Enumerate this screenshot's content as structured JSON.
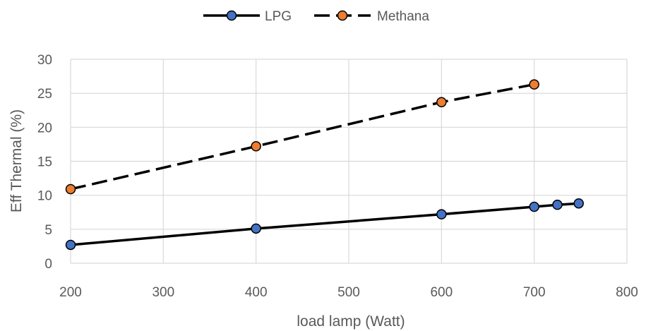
{
  "chart_data": {
    "type": "line",
    "xlabel": "load lamp (Watt)",
    "ylabel": "Eff Thermal (%)",
    "xlim": [
      200,
      800
    ],
    "ylim": [
      0,
      30
    ],
    "x_ticks": [
      200,
      300,
      400,
      500,
      600,
      700,
      800
    ],
    "y_ticks": [
      0,
      5,
      10,
      15,
      20,
      25,
      30
    ],
    "grid": true,
    "legend_position": "top",
    "series": [
      {
        "name": "LPG",
        "line_style": "solid",
        "line_color": "#000000",
        "marker_color": "#4472C4",
        "points": [
          [
            200,
            2.7
          ],
          [
            400,
            5.1
          ],
          [
            600,
            7.2
          ],
          [
            700,
            8.3
          ],
          [
            725,
            8.6
          ],
          [
            748,
            8.8
          ]
        ]
      },
      {
        "name": "Methana",
        "line_style": "dashed",
        "line_color": "#000000",
        "marker_color": "#ED7D31",
        "points": [
          [
            200,
            10.9
          ],
          [
            400,
            17.2
          ],
          [
            600,
            23.7
          ],
          [
            700,
            26.3
          ]
        ]
      }
    ]
  }
}
